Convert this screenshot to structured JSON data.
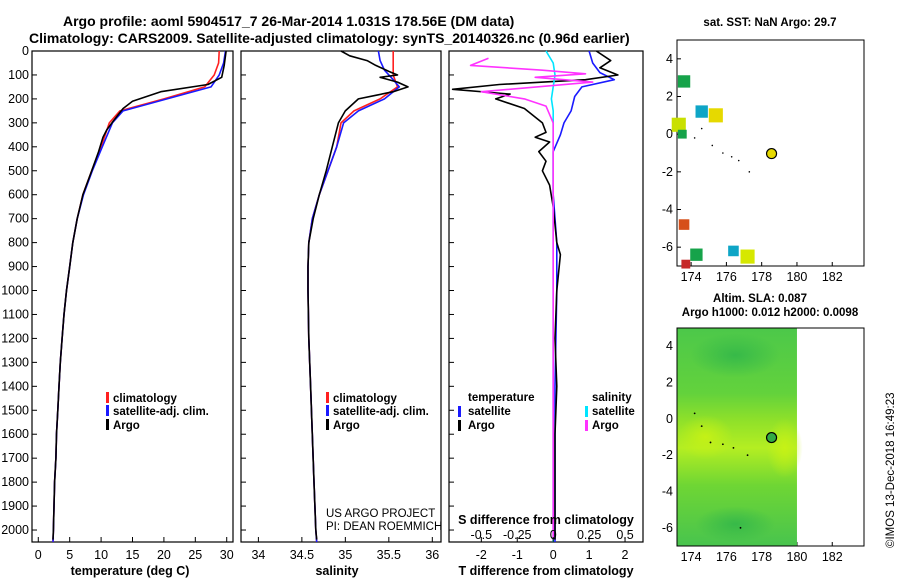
{
  "header": {
    "line1": "Argo profile: aoml 5904517_7 26-Mar-2014 1.031S 178.56E (DM data)",
    "line2": "Climatology: CARS2009. Satellite-adjusted climatology: synTS_20140326.nc (0.96d earlier)"
  },
  "credit": "©IMOS 13-Dec-2018 16:49:23",
  "colors": {
    "climatology": "#ff2020",
    "satellite": "#1a1aff",
    "argo": "#000000",
    "cyan": "#00e5ff",
    "magenta": "#ff33ff"
  },
  "chart_data": [
    {
      "id": "temperature",
      "type": "line",
      "xlabel": "temperature (deg C)",
      "ylabel": "depth",
      "xlim": [
        -1,
        31
      ],
      "ylim": [
        2050,
        0
      ],
      "x_ticks": [
        0,
        5,
        10,
        15,
        20,
        25,
        30
      ],
      "y_ticks": [
        0,
        100,
        200,
        300,
        400,
        500,
        600,
        700,
        800,
        900,
        1000,
        1100,
        1200,
        1300,
        1400,
        1500,
        1600,
        1700,
        1800,
        1900,
        2000
      ],
      "legend": [
        "climatology",
        "satellite-adj. clim.",
        "Argo"
      ],
      "series": [
        {
          "name": "climatology",
          "color": "#ff2020",
          "points": [
            [
              28.8,
              0
            ],
            [
              28.7,
              50
            ],
            [
              28.0,
              100
            ],
            [
              26.5,
              150
            ],
            [
              20.0,
              200
            ],
            [
              13.0,
              250
            ],
            [
              11.3,
              300
            ],
            [
              10.0,
              400
            ],
            [
              8.5,
              500
            ],
            [
              7.1,
              600
            ],
            [
              6.2,
              700
            ],
            [
              5.5,
              800
            ],
            [
              5.0,
              900
            ],
            [
              4.5,
              1000
            ],
            [
              4.1,
              1100
            ],
            [
              3.8,
              1200
            ],
            [
              3.5,
              1300
            ],
            [
              3.3,
              1400
            ],
            [
              3.1,
              1500
            ],
            [
              2.9,
              1600
            ],
            [
              2.8,
              1700
            ],
            [
              2.6,
              1800
            ],
            [
              2.5,
              1900
            ],
            [
              2.4,
              2000
            ],
            [
              2.35,
              2050
            ]
          ]
        },
        {
          "name": "satellite-adj. clim.",
          "color": "#1a1aff",
          "points": [
            [
              29.8,
              0
            ],
            [
              29.5,
              50
            ],
            [
              28.8,
              100
            ],
            [
              27.5,
              150
            ],
            [
              20.5,
              200
            ],
            [
              13.5,
              250
            ],
            [
              11.8,
              300
            ],
            [
              10.2,
              400
            ],
            [
              8.6,
              500
            ],
            [
              7.2,
              600
            ],
            [
              6.2,
              700
            ],
            [
              5.5,
              800
            ],
            [
              5.0,
              900
            ],
            [
              4.5,
              1000
            ],
            [
              4.1,
              1100
            ],
            [
              3.8,
              1200
            ],
            [
              3.5,
              1300
            ],
            [
              3.3,
              1400
            ],
            [
              3.1,
              1500
            ],
            [
              2.9,
              1600
            ],
            [
              2.8,
              1700
            ],
            [
              2.6,
              1800
            ],
            [
              2.5,
              1900
            ],
            [
              2.4,
              2000
            ],
            [
              2.35,
              2050
            ]
          ]
        },
        {
          "name": "Argo",
          "color": "#000000",
          "points": [
            [
              29.9,
              0
            ],
            [
              29.6,
              60
            ],
            [
              29.2,
              110
            ],
            [
              27.0,
              140
            ],
            [
              19.5,
              170
            ],
            [
              15.0,
              210
            ],
            [
              13.5,
              240
            ],
            [
              12.0,
              290
            ],
            [
              10.9,
              330
            ],
            [
              10.3,
              360
            ],
            [
              9.6,
              420
            ],
            [
              8.5,
              500
            ],
            [
              7.1,
              600
            ],
            [
              6.2,
              700
            ],
            [
              5.5,
              800
            ],
            [
              5.0,
              900
            ],
            [
              4.5,
              1000
            ],
            [
              4.1,
              1100
            ],
            [
              3.8,
              1200
            ],
            [
              3.5,
              1300
            ],
            [
              3.3,
              1400
            ],
            [
              3.1,
              1500
            ],
            [
              2.9,
              1600
            ],
            [
              2.8,
              1700
            ],
            [
              2.6,
              1800
            ],
            [
              2.5,
              1900
            ],
            [
              2.4,
              2000
            ],
            [
              2.35,
              2040
            ]
          ]
        }
      ]
    },
    {
      "id": "salinity",
      "type": "line",
      "xlabel": "salinity",
      "xlim": [
        33.8,
        36.1
      ],
      "ylim": [
        2050,
        0
      ],
      "x_ticks": [
        34,
        34.5,
        35,
        35.5,
        36
      ],
      "x_tick_labels": [
        "34",
        "34.5",
        "35",
        "35.5",
        "36"
      ],
      "legend": [
        "climatology",
        "satellite-adj. clim.",
        "Argo"
      ],
      "annotation": [
        "US ARGO PROJECT",
        "PI: DEAN ROEMMICH"
      ],
      "series": [
        {
          "name": "climatology",
          "color": "#ff2020",
          "points": [
            [
              35.55,
              0
            ],
            [
              35.55,
              100
            ],
            [
              35.6,
              150
            ],
            [
              35.4,
              200
            ],
            [
              35.1,
              250
            ],
            [
              34.95,
              300
            ],
            [
              34.9,
              400
            ],
            [
              34.8,
              500
            ],
            [
              34.7,
              600
            ],
            [
              34.62,
              700
            ],
            [
              34.58,
              800
            ],
            [
              34.57,
              900
            ],
            [
              34.57,
              1000
            ],
            [
              34.58,
              1200
            ],
            [
              34.6,
              1400
            ],
            [
              34.62,
              1600
            ],
            [
              34.64,
              1800
            ],
            [
              34.66,
              2000
            ],
            [
              34.67,
              2050
            ]
          ]
        },
        {
          "name": "satellite-adj. clim.",
          "color": "#1a1aff",
          "points": [
            [
              35.38,
              0
            ],
            [
              35.4,
              40
            ],
            [
              35.45,
              80
            ],
            [
              35.55,
              120
            ],
            [
              35.62,
              150
            ],
            [
              35.45,
              200
            ],
            [
              35.15,
              250
            ],
            [
              34.98,
              300
            ],
            [
              34.9,
              400
            ],
            [
              34.8,
              500
            ],
            [
              34.7,
              600
            ],
            [
              34.62,
              700
            ],
            [
              34.58,
              800
            ],
            [
              34.57,
              900
            ],
            [
              34.57,
              1000
            ],
            [
              34.58,
              1200
            ],
            [
              34.6,
              1400
            ],
            [
              34.62,
              1600
            ],
            [
              34.64,
              1800
            ],
            [
              34.66,
              2000
            ],
            [
              34.67,
              2050
            ]
          ]
        },
        {
          "name": "Argo",
          "color": "#000000",
          "points": [
            [
              34.95,
              0
            ],
            [
              35.05,
              20
            ],
            [
              35.25,
              40
            ],
            [
              35.35,
              60
            ],
            [
              35.5,
              85
            ],
            [
              35.6,
              100
            ],
            [
              35.4,
              110
            ],
            [
              35.6,
              130
            ],
            [
              35.72,
              150
            ],
            [
              35.55,
              170
            ],
            [
              35.35,
              185
            ],
            [
              35.15,
              200
            ],
            [
              35.0,
              250
            ],
            [
              34.92,
              300
            ],
            [
              34.85,
              400
            ],
            [
              34.78,
              500
            ],
            [
              34.7,
              600
            ],
            [
              34.63,
              700
            ],
            [
              34.58,
              800
            ],
            [
              34.57,
              900
            ],
            [
              34.57,
              1000
            ],
            [
              34.58,
              1200
            ],
            [
              34.6,
              1400
            ],
            [
              34.62,
              1600
            ],
            [
              34.64,
              1800
            ],
            [
              34.66,
              2000
            ],
            [
              34.67,
              2040
            ]
          ]
        }
      ]
    },
    {
      "id": "difference",
      "type": "line",
      "xlabel": "T difference from climatology",
      "xlabel_top": "S difference from climatology",
      "xlim": [
        -2.9,
        2.5
      ],
      "ylim": [
        2050,
        0
      ],
      "x_ticks": [
        -2,
        -1,
        0,
        1,
        2
      ],
      "x_tick_labels": [
        "-2",
        "-1",
        "0",
        "1",
        "2"
      ],
      "s_ticks": [
        -0.5,
        -0.25,
        0,
        0.25,
        0.5
      ],
      "s_tick_labels": [
        "-0.5",
        "-0.25",
        "0",
        "0.25",
        "0.5"
      ],
      "s_scale": 4,
      "legend_left_title": "temperature",
      "legend_left": [
        "satellite",
        "Argo"
      ],
      "legend_right_title": "salinity",
      "legend_right": [
        "satellite",
        "Argo"
      ],
      "series": [
        {
          "name": "T satellite",
          "color": "#1a1aff",
          "points": [
            [
              1.0,
              0
            ],
            [
              1.1,
              50
            ],
            [
              1.3,
              90
            ],
            [
              1.7,
              120
            ],
            [
              0.8,
              150
            ],
            [
              0.6,
              190
            ],
            [
              0.5,
              250
            ],
            [
              0.3,
              300
            ],
            [
              0.2,
              350
            ],
            [
              0.0,
              420
            ],
            [
              0.0,
              500
            ],
            [
              0.0,
              600
            ],
            [
              0.1,
              800
            ],
            [
              0.1,
              1000
            ],
            [
              0.05,
              1400
            ],
            [
              0.05,
              2050
            ]
          ]
        },
        {
          "name": "T Argo",
          "color": "#000000",
          "points": [
            [
              1.2,
              0
            ],
            [
              1.6,
              40
            ],
            [
              1.3,
              70
            ],
            [
              1.8,
              100
            ],
            [
              0.9,
              120
            ],
            [
              -1.5,
              140
            ],
            [
              -2.8,
              160
            ],
            [
              -1.2,
              180
            ],
            [
              -1.6,
              200
            ],
            [
              -0.8,
              240
            ],
            [
              -0.3,
              300
            ],
            [
              -0.2,
              340
            ],
            [
              -0.5,
              360
            ],
            [
              -0.1,
              380
            ],
            [
              -0.4,
              420
            ],
            [
              -0.2,
              460
            ],
            [
              -0.3,
              500
            ],
            [
              -0.1,
              560
            ],
            [
              0.0,
              650
            ],
            [
              0.1,
              800
            ],
            [
              0.2,
              850
            ],
            [
              0.1,
              1000
            ],
            [
              0.05,
              1200
            ],
            [
              0.1,
              1400
            ],
            [
              0.05,
              1600
            ],
            [
              0.05,
              2040
            ]
          ]
        },
        {
          "name": "S satellite",
          "color": "#00e5ff",
          "points": [
            [
              -0.2,
              0
            ],
            [
              0.0,
              50
            ],
            [
              0.05,
              100
            ],
            [
              0.0,
              150
            ],
            [
              -0.05,
              200
            ],
            [
              0.0,
              250
            ],
            [
              0.0,
              2050
            ]
          ]
        },
        {
          "name": "S Argo",
          "color": "#ff33ff",
          "points": [
            [
              -1.8,
              30
            ],
            [
              -2.3,
              60
            ],
            [
              -0.3,
              80
            ],
            [
              0.9,
              95
            ],
            [
              -0.5,
              110
            ],
            [
              1.1,
              130
            ],
            [
              -2.0,
              170
            ],
            [
              -0.8,
              200
            ],
            [
              -0.2,
              230
            ],
            [
              0.0,
              300
            ],
            [
              0.0,
              2040
            ]
          ]
        }
      ]
    },
    {
      "id": "sst_map",
      "type": "heatmap",
      "title": "sat. SST: NaN Argo: 29.7",
      "x_ticks": [
        174,
        176,
        178,
        180,
        182
      ],
      "y_ticks": [
        4,
        2,
        0,
        -2,
        -4,
        -6
      ],
      "xlim": [
        173.2,
        183.8
      ],
      "ylim": [
        -7,
        5
      ],
      "profile": [
        178.56,
        -1.031
      ],
      "cells": [
        {
          "lon": 173.6,
          "lat": 2.8,
          "color": "#16a34a",
          "size": 0.7
        },
        {
          "lon": 174.6,
          "lat": 1.2,
          "color": "#0ea5c6",
          "size": 0.7
        },
        {
          "lon": 175.4,
          "lat": 1.0,
          "color": "#e6d900",
          "size": 0.8
        },
        {
          "lon": 173.3,
          "lat": 0.5,
          "color": "#c9e000",
          "size": 0.8
        },
        {
          "lon": 173.5,
          "lat": 0.0,
          "color": "#16a34a",
          "size": 0.5
        },
        {
          "lon": 173.6,
          "lat": -4.8,
          "color": "#d64f1a",
          "size": 0.6
        },
        {
          "lon": 174.3,
          "lat": -6.4,
          "color": "#16a34a",
          "size": 0.7
        },
        {
          "lon": 176.4,
          "lat": -6.2,
          "color": "#0ea5c6",
          "size": 0.6
        },
        {
          "lon": 177.2,
          "lat": -6.5,
          "color": "#d6e800",
          "size": 0.8
        },
        {
          "lon": 173.7,
          "lat": -6.9,
          "color": "#c62828",
          "size": 0.5
        }
      ]
    },
    {
      "id": "sla_map",
      "type": "heatmap",
      "title": "Altim. SLA: 0.087",
      "subtitle": "Argo h1000: 0.012 h2000: 0.0098",
      "x_ticks": [
        174,
        176,
        178,
        180,
        182
      ],
      "y_ticks": [
        4,
        2,
        0,
        -2,
        -4,
        -6
      ],
      "xlim": [
        173.2,
        183.8
      ],
      "ylim": [
        -7,
        5
      ],
      "data_extent_lon": [
        173.2,
        180.0
      ],
      "profile": [
        178.56,
        -1.031
      ]
    }
  ]
}
